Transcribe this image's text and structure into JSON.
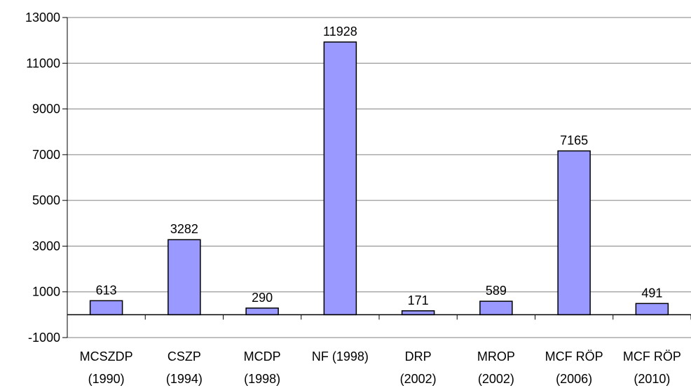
{
  "chart_data": {
    "type": "bar",
    "categories": [
      [
        "MCSZDP",
        "(1990)"
      ],
      [
        "CSZP",
        "(1994)"
      ],
      [
        "MCDP",
        "(1998)"
      ],
      [
        "NF (1998)",
        ""
      ],
      [
        "DRP",
        "(2002)"
      ],
      [
        "MROP",
        "(2002)"
      ],
      [
        "MCF RÖP",
        "(2006)"
      ],
      [
        "MCF RÖP",
        "(2010)"
      ]
    ],
    "values": [
      613,
      3282,
      290,
      11928,
      171,
      589,
      7165,
      491
    ],
    "data_labels": [
      "613",
      "3282",
      "290",
      "11928",
      "171",
      "589",
      "7165",
      "491"
    ],
    "y_ticks": [
      13000,
      11000,
      9000,
      7000,
      5000,
      3000,
      1000,
      -1000
    ],
    "y_tick_labels": [
      "13000",
      "11000",
      "9000",
      "7000",
      "5000",
      "3000",
      "1000",
      "-1000"
    ],
    "ylim": [
      -1000,
      13000
    ],
    "grid": true,
    "bar_color": "#9999ff",
    "bar_stroke": "#000000",
    "gridline_color": "#808080",
    "title": "",
    "xlabel": "",
    "ylabel": ""
  }
}
